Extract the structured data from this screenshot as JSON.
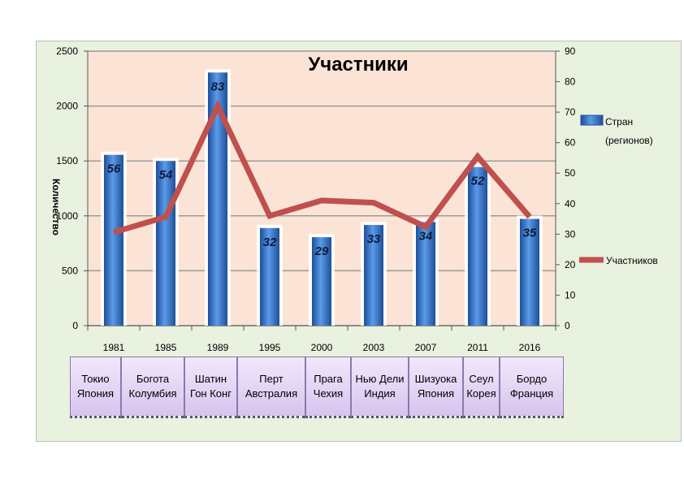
{
  "chart_data": {
    "type": "bar+line",
    "title": "Участники",
    "ylabel": "Количество",
    "categories": [
      "1981",
      "1985",
      "1989",
      "1995",
      "2000",
      "2003",
      "2007",
      "2011",
      "2016"
    ],
    "places": [
      [
        "Токио",
        "Япония"
      ],
      [
        "Богота",
        "Колумбия"
      ],
      [
        "Шатин",
        "Гон Конг"
      ],
      [
        "Перт",
        "Австралия"
      ],
      [
        "Прага",
        "Чехия"
      ],
      [
        "Нью Дели",
        "Индия"
      ],
      [
        "Шизуока",
        "Япония"
      ],
      [
        "Сеул",
        "Корея"
      ],
      [
        "Бордо",
        "Франция"
      ]
    ],
    "left_axis": {
      "min": 0,
      "max": 2500,
      "ticks": [
        0,
        500,
        1000,
        1500,
        2000,
        2500
      ]
    },
    "right_axis": {
      "min": 0,
      "max": 90,
      "ticks": [
        0,
        10,
        20,
        30,
        40,
        50,
        60,
        70,
        80,
        90
      ]
    },
    "series": [
      {
        "name": "Стран (регионов)",
        "kind": "bar",
        "axis": "right",
        "color": "#2f6fc6",
        "values": [
          56,
          54,
          83,
          32,
          29,
          33,
          34,
          52,
          35
        ],
        "labels": [
          "56",
          "54",
          "83",
          "32",
          "29",
          "33",
          "34",
          "52",
          "35"
        ]
      },
      {
        "name": "Участников",
        "kind": "line",
        "axis": "left",
        "color": "#c0504d",
        "values": [
          850,
          990,
          2000,
          1000,
          1140,
          1120,
          900,
          1540,
          990
        ]
      }
    ],
    "legend_lines": [
      [
        "Стран",
        "(регионов)"
      ],
      [
        "Участников"
      ]
    ],
    "legend_position": "right",
    "grid": true,
    "plot_bg": "#fbe4d5"
  }
}
